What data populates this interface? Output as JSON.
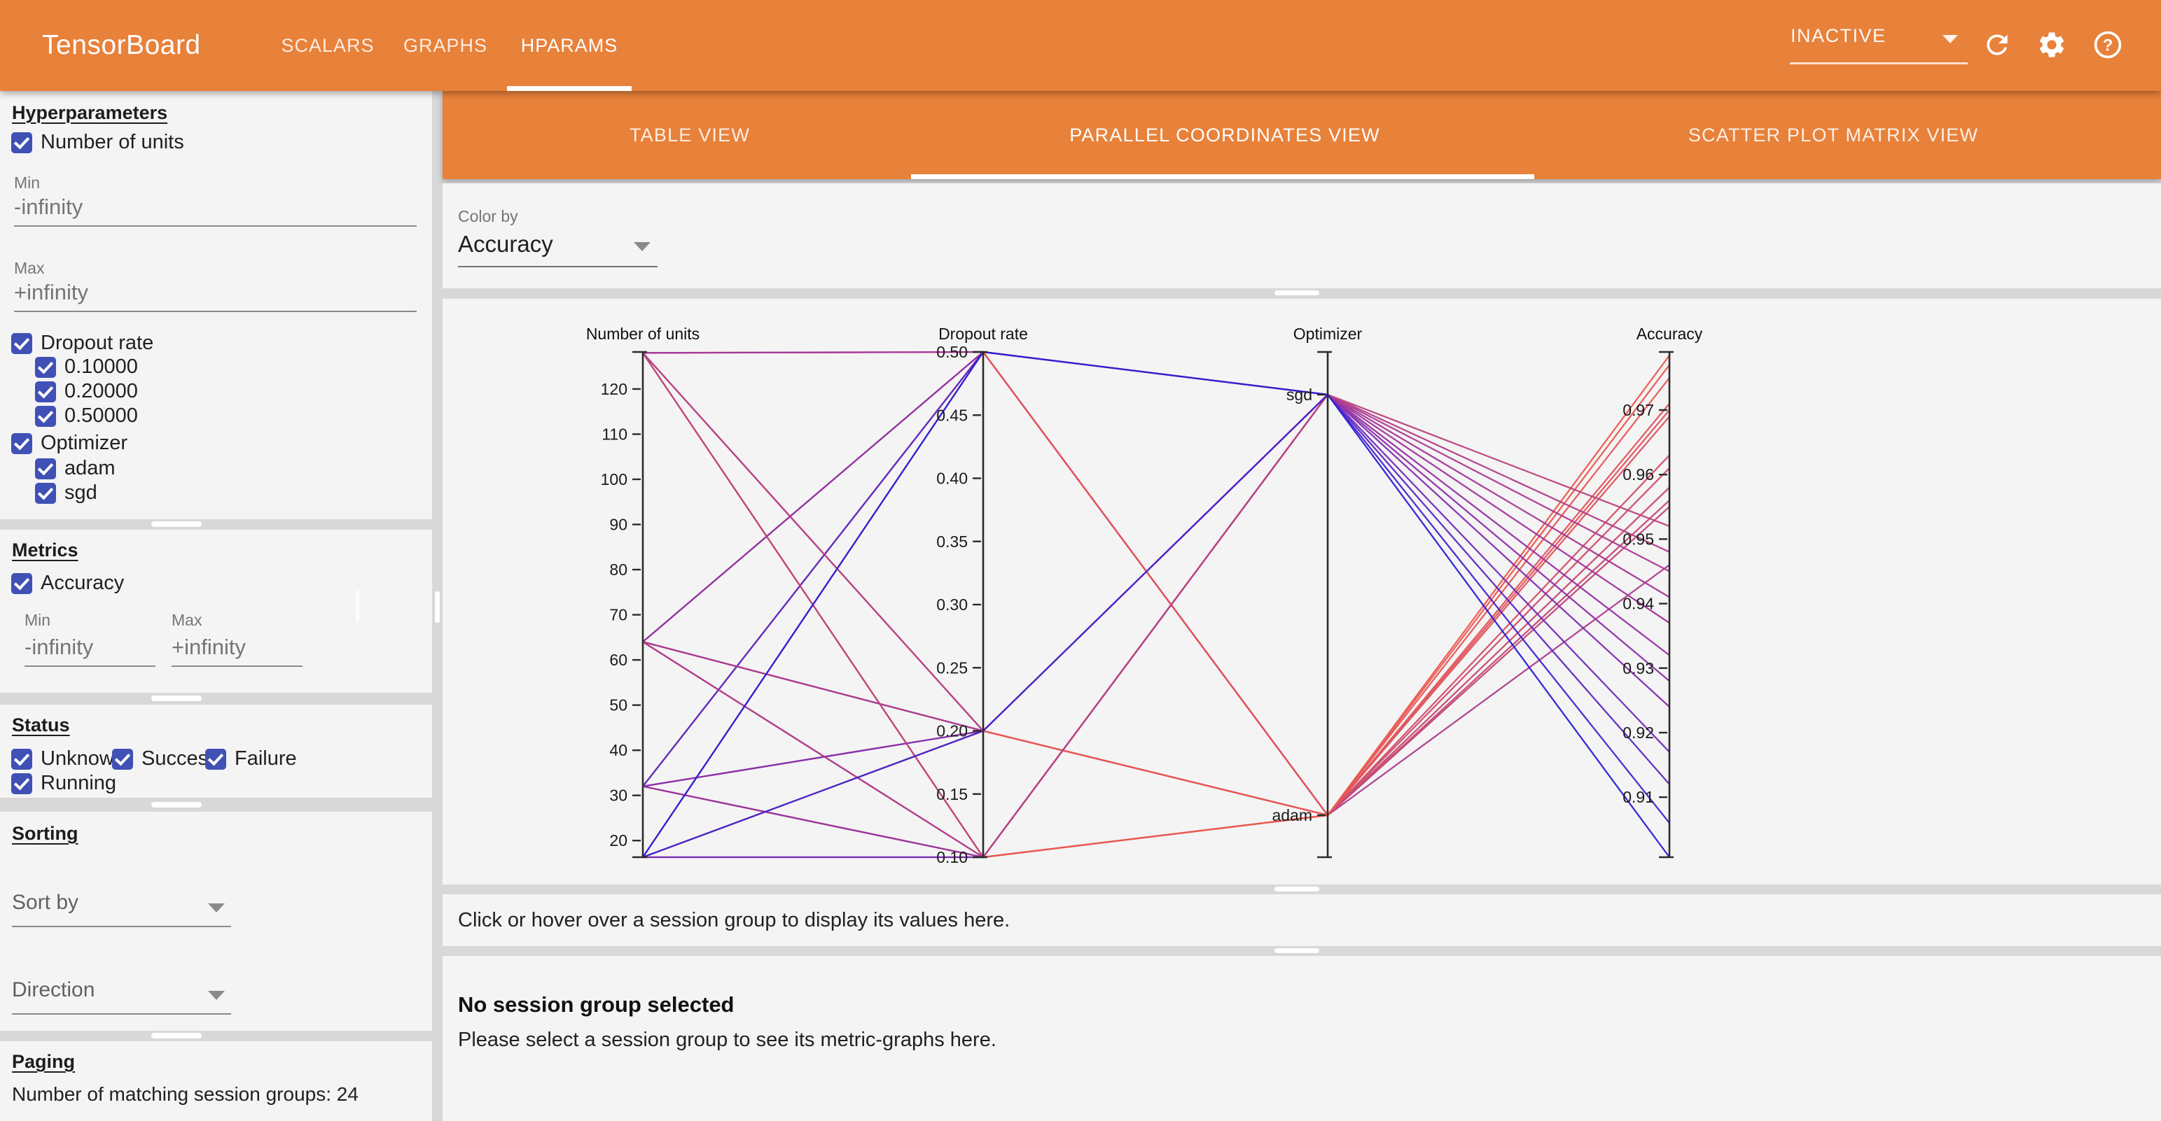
{
  "header": {
    "title": "TensorBoard",
    "tabs": [
      {
        "label": "SCALARS",
        "active": false
      },
      {
        "label": "GRAPHS",
        "active": false
      },
      {
        "label": "HPARAMS",
        "active": true
      }
    ],
    "status_dropdown": "INACTIVE",
    "icons": [
      "refresh-icon",
      "settings-icon",
      "help-icon"
    ]
  },
  "sidebar": {
    "hyperparameters": {
      "heading": "Hyperparameters",
      "items": [
        {
          "label": "Number of units",
          "checked": true,
          "children": []
        },
        {
          "label": "Dropout rate",
          "checked": true,
          "children": [
            "0.10000",
            "0.20000",
            "0.50000"
          ]
        },
        {
          "label": "Optimizer",
          "checked": true,
          "children": [
            "adam",
            "sgd"
          ]
        }
      ],
      "min_label": "Min",
      "min_placeholder": "-infinity",
      "max_label": "Max",
      "max_placeholder": "+infinity"
    },
    "metrics": {
      "heading": "Metrics",
      "items": [
        {
          "label": "Accuracy",
          "checked": true
        }
      ],
      "min_label": "Min",
      "min_placeholder": "-infinity",
      "max_label": "Max",
      "max_placeholder": "+infinity"
    },
    "status": {
      "heading": "Status",
      "options": [
        {
          "label": "Unknown",
          "checked": true
        },
        {
          "label": "Success",
          "checked": true
        },
        {
          "label": "Failure",
          "checked": true
        },
        {
          "label": "Running",
          "checked": true
        }
      ]
    },
    "sorting": {
      "heading": "Sorting",
      "sort_by_placeholder": "Sort by",
      "direction_placeholder": "Direction"
    },
    "paging": {
      "heading": "Paging",
      "summary": "Number of matching session groups: 24"
    }
  },
  "main": {
    "view_tabs": [
      {
        "label": "TABLE VIEW",
        "active": false
      },
      {
        "label": "PARALLEL COORDINATES VIEW",
        "active": true
      },
      {
        "label": "SCATTER PLOT MATRIX VIEW",
        "active": false
      }
    ],
    "color_by": {
      "label": "Color by",
      "value": "Accuracy"
    },
    "hover_hint": "Click or hover over a session group to display its values here.",
    "empty_state": {
      "title": "No session group selected",
      "subtitle": "Please select a session group to see its metric-graphs here."
    }
  },
  "chart_data": {
    "type": "parallel_coordinates",
    "color_by": "Accuracy",
    "axes": [
      {
        "name": "Number of units",
        "kind": "numeric",
        "domain": [
          16,
          128
        ],
        "ticks": [
          120,
          110,
          100,
          90,
          80,
          70,
          60,
          50,
          40,
          30,
          20
        ]
      },
      {
        "name": "Dropout rate",
        "kind": "numeric",
        "domain": [
          0.1,
          0.5
        ],
        "ticks": [
          0.5,
          0.45,
          0.4,
          0.35,
          0.3,
          0.25,
          0.2,
          0.15,
          0.1
        ]
      },
      {
        "name": "Optimizer",
        "kind": "categorical",
        "categories": [
          "sgd",
          "adam"
        ]
      },
      {
        "name": "Accuracy",
        "kind": "numeric",
        "domain": [
          0.9005,
          0.979
        ],
        "ticks": [
          0.97,
          0.96,
          0.95,
          0.94,
          0.93,
          0.92,
          0.91
        ]
      }
    ],
    "color_stops": [
      [
        0.9005,
        "#2b1fd6"
      ],
      [
        0.916,
        "#6f2dbd"
      ],
      [
        0.93,
        "#932fa6"
      ],
      [
        0.944,
        "#aa3b92"
      ],
      [
        0.958,
        "#c84a70"
      ],
      [
        0.968,
        "#dc5360"
      ],
      [
        0.979,
        "#ec5a4f"
      ]
    ],
    "sessions": [
      {
        "units": 16,
        "dropout": 0.5,
        "optimizer": "adam",
        "accuracy": 0.946
      },
      {
        "units": 16,
        "dropout": 0.2,
        "optimizer": "adam",
        "accuracy": 0.955
      },
      {
        "units": 32,
        "dropout": 0.5,
        "optimizer": "adam",
        "accuracy": 0.956
      },
      {
        "units": 16,
        "dropout": 0.1,
        "optimizer": "adam",
        "accuracy": 0.958
      },
      {
        "units": 32,
        "dropout": 0.2,
        "optimizer": "adam",
        "accuracy": 0.961
      },
      {
        "units": 64,
        "dropout": 0.5,
        "optimizer": "adam",
        "accuracy": 0.963
      },
      {
        "units": 32,
        "dropout": 0.1,
        "optimizer": "adam",
        "accuracy": 0.969
      },
      {
        "units": 64,
        "dropout": 0.2,
        "optimizer": "adam",
        "accuracy": 0.97
      },
      {
        "units": 128,
        "dropout": 0.5,
        "optimizer": "adam",
        "accuracy": 0.971
      },
      {
        "units": 64,
        "dropout": 0.1,
        "optimizer": "adam",
        "accuracy": 0.975
      },
      {
        "units": 128,
        "dropout": 0.2,
        "optimizer": "adam",
        "accuracy": 0.977
      },
      {
        "units": 128,
        "dropout": 0.1,
        "optimizer": "adam",
        "accuracy": 0.9785
      },
      {
        "units": 32,
        "dropout": 0.5,
        "optimizer": "sgd",
        "accuracy": 0.912
      },
      {
        "units": 16,
        "dropout": 0.1,
        "optimizer": "sgd",
        "accuracy": 0.917
      },
      {
        "units": 32,
        "dropout": 0.2,
        "optimizer": "sgd",
        "accuracy": 0.924
      },
      {
        "units": 64,
        "dropout": 0.5,
        "optimizer": "sgd",
        "accuracy": 0.928
      },
      {
        "units": 32,
        "dropout": 0.1,
        "optimizer": "sgd",
        "accuracy": 0.932
      },
      {
        "units": 128,
        "dropout": 0.5,
        "optimizer": "sgd",
        "accuracy": 0.937
      },
      {
        "units": 64,
        "dropout": 0.2,
        "optimizer": "sgd",
        "accuracy": 0.941
      },
      {
        "units": 64,
        "dropout": 0.1,
        "optimizer": "sgd",
        "accuracy": 0.945
      },
      {
        "units": 128,
        "dropout": 0.2,
        "optimizer": "sgd",
        "accuracy": 0.948
      },
      {
        "units": 128,
        "dropout": 0.1,
        "optimizer": "sgd",
        "accuracy": 0.952
      },
      {
        "units": 16,
        "dropout": 0.2,
        "optimizer": "sgd",
        "accuracy": 0.906
      },
      {
        "units": 16,
        "dropout": 0.5,
        "optimizer": "sgd",
        "accuracy": 0.9005
      }
    ]
  }
}
